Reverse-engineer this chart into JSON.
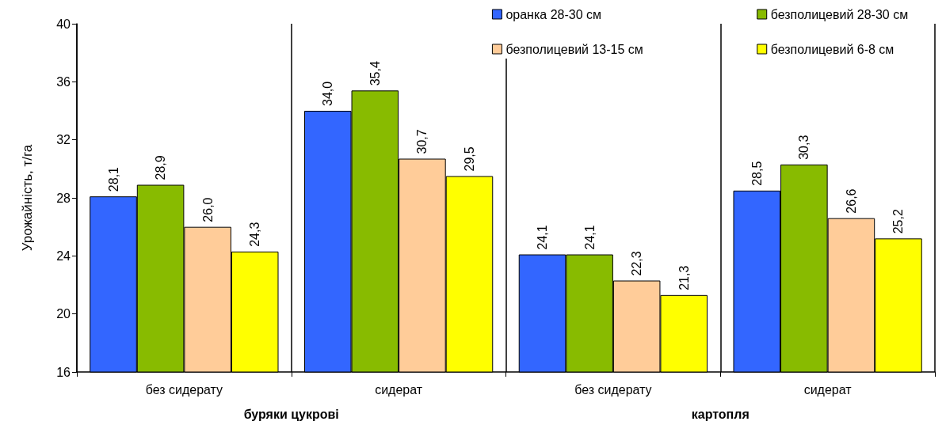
{
  "chart_data": {
    "type": "bar",
    "ylabel": "Урожайність, т/га",
    "categories": [
      "без сидерату",
      "сидерат",
      "без сидерату",
      "сидерат"
    ],
    "annotations": [
      "буряки цукрові",
      "картопля"
    ],
    "series": [
      {
        "name": "оранка 28-30 см",
        "color": "#3366ff",
        "values": [
          28.1,
          34.0,
          24.1,
          28.5
        ],
        "value_labels": [
          "28,1",
          "34,0",
          "24,1",
          "28,5"
        ]
      },
      {
        "name": "безполицевий 28-30 см",
        "color": "#88bb00",
        "values": [
          28.9,
          35.4,
          24.1,
          30.3
        ],
        "value_labels": [
          "28,9",
          "35,4",
          "24,1",
          "30,3"
        ]
      },
      {
        "name": "безполицевий 13-15 см",
        "color": "#ffcc99",
        "values": [
          26.0,
          30.7,
          22.3,
          26.6
        ],
        "value_labels": [
          "26,0",
          "30,7",
          "22,3",
          "26,6"
        ]
      },
      {
        "name": "безполицевий 6-8 см",
        "color": "#ffff00",
        "values": [
          24.3,
          29.5,
          21.3,
          25.2
        ],
        "value_labels": [
          "24,3",
          "29,5",
          "21,3",
          "25,2"
        ]
      }
    ],
    "ylim": [
      16,
      40
    ],
    "yticks": [
      16,
      20,
      24,
      28,
      32,
      36,
      40
    ],
    "grid": "x",
    "legend": "top right"
  }
}
